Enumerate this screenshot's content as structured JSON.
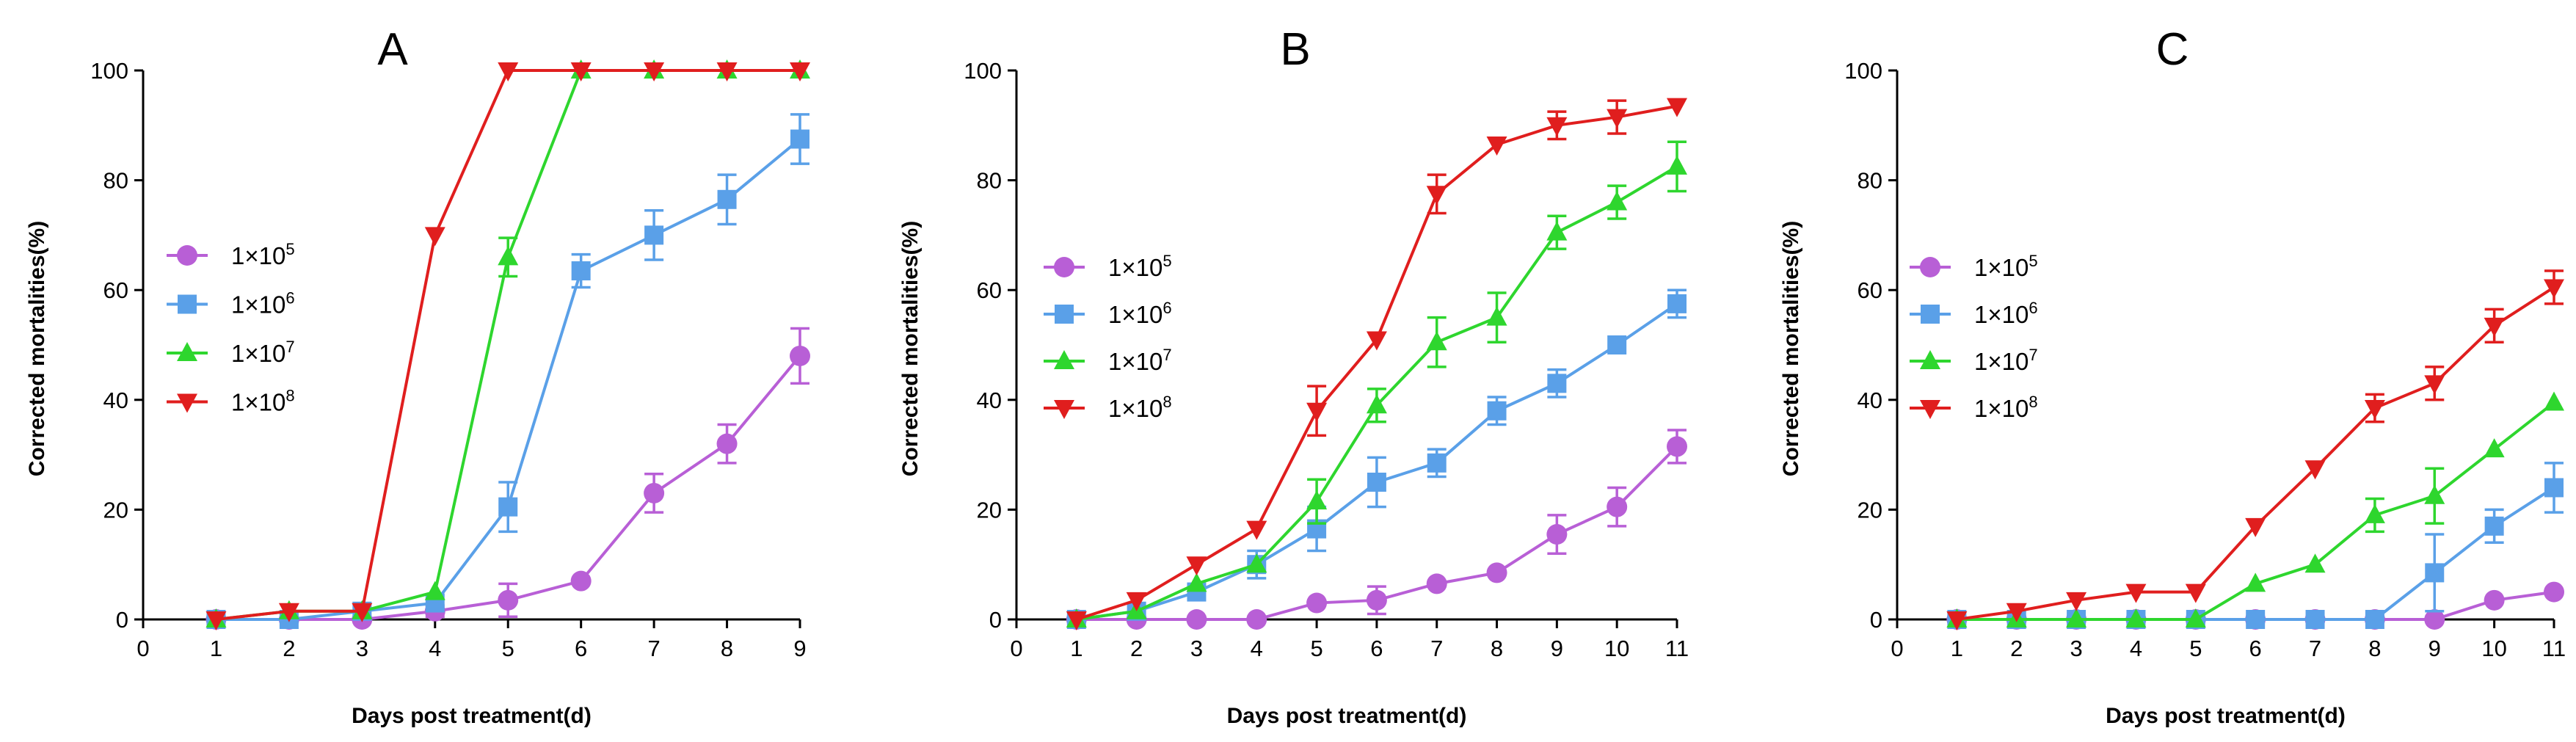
{
  "chart_data": [
    {
      "type": "line",
      "panel_label": "A",
      "xlabel": "Days post treatment(d)",
      "ylabel": "Corrected mortalities(%)",
      "xlim": [
        0,
        9
      ],
      "ylim": [
        0,
        100
      ],
      "xticks": [
        "0",
        "1",
        "2",
        "3",
        "4",
        "5",
        "6",
        "7",
        "8",
        "9"
      ],
      "yticks": [
        "0",
        "20",
        "40",
        "60",
        "80",
        "100"
      ],
      "legend_position": "center-left",
      "series": [
        {
          "name": "1×10",
          "exp": "5",
          "color": "#b85fd6",
          "marker": "circle",
          "x": [
            1,
            2,
            3,
            4,
            5,
            6,
            7,
            8,
            9
          ],
          "y": [
            0,
            0,
            0,
            1.5,
            3.5,
            7,
            23,
            32,
            48
          ],
          "err": [
            0,
            0,
            0,
            1,
            3,
            0,
            3.5,
            3.5,
            5
          ]
        },
        {
          "name": "1×10",
          "exp": "6",
          "color": "#5aa0e8",
          "marker": "square",
          "x": [
            1,
            2,
            3,
            4,
            5,
            6,
            7,
            8,
            9
          ],
          "y": [
            0,
            0,
            1.5,
            3,
            20.5,
            63.5,
            70,
            76.5,
            87.5
          ],
          "err": [
            0,
            0,
            0,
            0,
            4.5,
            3,
            4.5,
            4.5,
            4.5
          ]
        },
        {
          "name": "1×10",
          "exp": "7",
          "color": "#2ed62e",
          "marker": "triangle-up",
          "x": [
            1,
            2,
            3,
            4,
            5,
            6,
            7,
            8,
            9
          ],
          "y": [
            0,
            1.5,
            1.5,
            5,
            66,
            100,
            100,
            100,
            100
          ],
          "err": [
            0,
            0,
            0,
            0,
            3.5,
            0,
            0,
            0,
            0
          ]
        },
        {
          "name": "1×10",
          "exp": "8",
          "color": "#e01e1e",
          "marker": "triangle-down",
          "x": [
            1,
            2,
            3,
            4,
            5,
            6,
            7,
            8,
            9
          ],
          "y": [
            0,
            1.5,
            1.5,
            70,
            100,
            100,
            100,
            100,
            100
          ],
          "err": [
            0,
            0,
            0,
            0,
            0,
            0,
            0,
            0,
            0
          ]
        }
      ]
    },
    {
      "type": "line",
      "panel_label": "B",
      "xlabel": "Days post treatment(d)",
      "ylabel": "Corrected mortalities(%)",
      "xlim": [
        0,
        11
      ],
      "ylim": [
        0,
        100
      ],
      "xticks": [
        "0",
        "1",
        "2",
        "3",
        "4",
        "5",
        "6",
        "7",
        "8",
        "9",
        "10",
        "11"
      ],
      "yticks": [
        "0",
        "20",
        "40",
        "60",
        "80",
        "100"
      ],
      "legend_position": "center-left",
      "series": [
        {
          "name": "1×10",
          "exp": "5",
          "color": "#b85fd6",
          "marker": "circle",
          "x": [
            1,
            2,
            3,
            4,
            5,
            6,
            7,
            8,
            9,
            10,
            11
          ],
          "y": [
            0,
            0,
            0,
            0,
            3,
            3.5,
            6.5,
            8.5,
            15.5,
            20.5,
            31.5
          ],
          "err": [
            0,
            0,
            0,
            0,
            0,
            2.5,
            0,
            0,
            3.5,
            3.5,
            3
          ]
        },
        {
          "name": "1×10",
          "exp": "6",
          "color": "#5aa0e8",
          "marker": "square",
          "x": [
            1,
            2,
            3,
            4,
            5,
            6,
            7,
            8,
            9,
            10,
            11
          ],
          "y": [
            0,
            1.5,
            5,
            10,
            16.5,
            25,
            28.5,
            38,
            43,
            50,
            57.5
          ],
          "err": [
            0,
            0,
            0,
            2.5,
            4,
            4.5,
            2.5,
            2.5,
            2.5,
            0,
            2.5
          ]
        },
        {
          "name": "1×10",
          "exp": "7",
          "color": "#2ed62e",
          "marker": "triangle-up",
          "x": [
            1,
            2,
            3,
            4,
            5,
            6,
            7,
            8,
            9,
            10,
            11
          ],
          "y": [
            0,
            1.5,
            6.5,
            10,
            21.5,
            39,
            50.5,
            55,
            70.5,
            76,
            82.5
          ],
          "err": [
            0,
            0,
            0,
            0,
            4,
            3,
            4.5,
            4.5,
            3,
            3,
            4.5
          ]
        },
        {
          "name": "1×10",
          "exp": "8",
          "color": "#e01e1e",
          "marker": "triangle-down",
          "x": [
            1,
            2,
            3,
            4,
            5,
            6,
            7,
            8,
            9,
            10,
            11
          ],
          "y": [
            0,
            3.5,
            10,
            16.5,
            38,
            51,
            77.5,
            86.5,
            90,
            91.5,
            93.5
          ],
          "err": [
            0,
            0,
            0,
            0,
            4.5,
            0,
            3.5,
            0,
            2.5,
            3,
            0
          ]
        }
      ]
    },
    {
      "type": "line",
      "panel_label": "C",
      "xlabel": "Days post treatment(d)",
      "ylabel": "Corrected mortalities(%)",
      "xlim": [
        0,
        11
      ],
      "ylim": [
        0,
        100
      ],
      "xticks": [
        "0",
        "1",
        "2",
        "3",
        "4",
        "5",
        "6",
        "7",
        "8",
        "9",
        "10",
        "11"
      ],
      "yticks": [
        "0",
        "20",
        "40",
        "60",
        "80",
        "100"
      ],
      "legend_position": "center-left",
      "series": [
        {
          "name": "1×10",
          "exp": "5",
          "color": "#b85fd6",
          "marker": "circle",
          "x": [
            1,
            2,
            3,
            4,
            5,
            6,
            7,
            8,
            9,
            10,
            11
          ],
          "y": [
            0,
            0,
            0,
            0,
            0,
            0,
            0,
            0,
            0,
            3.5,
            5
          ],
          "err": [
            0,
            0,
            0,
            0,
            0,
            0,
            0,
            0,
            0,
            0,
            0
          ]
        },
        {
          "name": "1×10",
          "exp": "6",
          "color": "#5aa0e8",
          "marker": "square",
          "x": [
            1,
            2,
            3,
            4,
            5,
            6,
            7,
            8,
            9,
            10,
            11
          ],
          "y": [
            0,
            0,
            0,
            0,
            0,
            0,
            0,
            0,
            8.5,
            17,
            24
          ],
          "err": [
            0,
            0,
            0,
            0,
            0,
            0,
            0,
            0,
            7,
            3,
            4.5
          ]
        },
        {
          "name": "1×10",
          "exp": "7",
          "color": "#2ed62e",
          "marker": "triangle-up",
          "x": [
            1,
            2,
            3,
            4,
            5,
            6,
            7,
            8,
            9,
            10,
            11
          ],
          "y": [
            0,
            0,
            0,
            0,
            0,
            6.5,
            10,
            19,
            22.5,
            31,
            39.5
          ],
          "err": [
            0,
            0,
            0,
            0,
            0,
            0,
            0,
            3,
            5,
            0,
            0
          ]
        },
        {
          "name": "1×10",
          "exp": "8",
          "color": "#e01e1e",
          "marker": "triangle-down",
          "x": [
            1,
            2,
            3,
            4,
            5,
            6,
            7,
            8,
            9,
            10,
            11
          ],
          "y": [
            0,
            1.5,
            3.5,
            5,
            5,
            17,
            27.5,
            38.5,
            43,
            53.5,
            60.5
          ],
          "err": [
            0,
            0,
            0,
            0,
            0,
            0,
            0,
            2.5,
            3,
            3,
            3
          ]
        }
      ]
    }
  ]
}
